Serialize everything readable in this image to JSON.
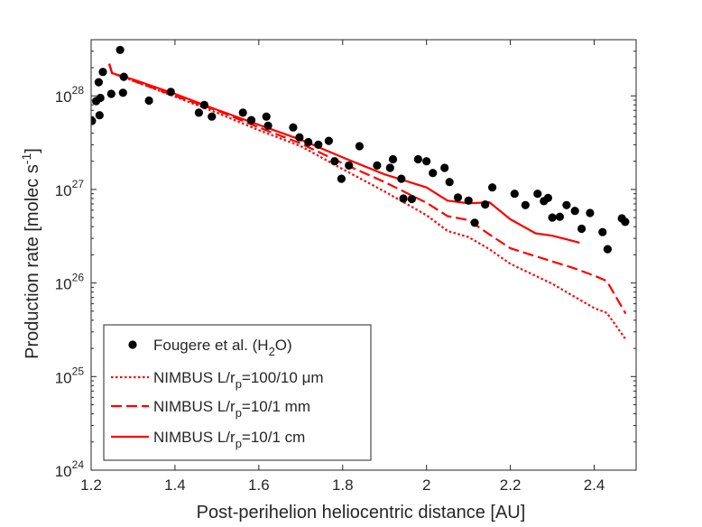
{
  "chart_data": {
    "type": "scatter",
    "title": "",
    "xlabel": "Post-perihelion heliocentric distance [AU]",
    "ylabel": {
      "prefix": "Production rate [molec s",
      "superscript": "-1",
      "suffix": "]"
    },
    "xlim": [
      1.2,
      2.5
    ],
    "ylim_log10": [
      24,
      28.6
    ],
    "yscale": "log",
    "x_ticks": [
      1.2,
      1.4,
      1.6,
      1.8,
      2.0,
      2.2,
      2.4
    ],
    "x_tick_labels": [
      "1.2",
      "1.4",
      "1.6",
      "1.8",
      "2",
      "2.2",
      "2.4"
    ],
    "y_ticks": [
      {
        "value": 24,
        "base": "10",
        "exp": "24"
      },
      {
        "value": 25,
        "base": "10",
        "exp": "25"
      },
      {
        "value": 26,
        "base": "10",
        "exp": "26"
      },
      {
        "value": 27,
        "base": "10",
        "exp": "27"
      },
      {
        "value": 28,
        "base": "10",
        "exp": "28"
      }
    ],
    "legend_position": "bottom-left",
    "colors": {
      "observations": "#000000",
      "model": "#ff0000",
      "axis": "#262626"
    },
    "series": [
      {
        "name": "Fougere et al. (H2O)",
        "label": {
          "prefix": "Fougere et al. (H",
          "sub": "2",
          "suffix": "O)"
        },
        "style": "markers",
        "points": [
          [
            1.202,
            5.4e+27
          ],
          [
            1.212,
            8.8e+27
          ],
          [
            1.218,
            1.4e+28
          ],
          [
            1.22,
            6.2e+27
          ],
          [
            1.222,
            9.5e+27
          ],
          [
            1.228,
            1.8e+28
          ],
          [
            1.248,
            1.05e+28
          ],
          [
            1.269,
            3.1e+28
          ],
          [
            1.276,
            1.08e+28
          ],
          [
            1.278,
            1.6e+28
          ],
          [
            1.338,
            8.9e+27
          ],
          [
            1.39,
            1.1e+28
          ],
          [
            1.457,
            6.6e+27
          ],
          [
            1.47,
            8e+27
          ],
          [
            1.488,
            6e+27
          ],
          [
            1.562,
            6.6e+27
          ],
          [
            1.582,
            5.5e+27
          ],
          [
            1.618,
            6e+27
          ],
          [
            1.622,
            4.8e+27
          ],
          [
            1.682,
            4.6e+27
          ],
          [
            1.697,
            3.6e+27
          ],
          [
            1.718,
            3.2e+27
          ],
          [
            1.742,
            3e+27
          ],
          [
            1.767,
            3.3e+27
          ],
          [
            1.781,
            2e+27
          ],
          [
            1.797,
            1.3e+27
          ],
          [
            1.815,
            1.8e+27
          ],
          [
            1.84,
            2.9e+27
          ],
          [
            1.882,
            1.8e+27
          ],
          [
            1.913,
            1.7e+27
          ],
          [
            1.92,
            2.1e+27
          ],
          [
            1.94,
            1.3e+27
          ],
          [
            1.945,
            8e+26
          ],
          [
            1.965,
            7.9e+26
          ],
          [
            1.98,
            2.1e+27
          ],
          [
            2.0,
            2e+27
          ],
          [
            2.015,
            1.5e+27
          ],
          [
            2.043,
            1.7e+27
          ],
          [
            2.055,
            1.2e+27
          ],
          [
            2.075,
            8.2e+26
          ],
          [
            2.1,
            7.6e+26
          ],
          [
            2.115,
            4.4e+26
          ],
          [
            2.14,
            6.9e+26
          ],
          [
            2.157,
            1.05e+27
          ],
          [
            2.21,
            9e+26
          ],
          [
            2.236,
            6.8e+26
          ],
          [
            2.265,
            9e+26
          ],
          [
            2.28,
            7.5e+26
          ],
          [
            2.29,
            8.1e+26
          ],
          [
            2.3,
            5e+26
          ],
          [
            2.318,
            5.1e+26
          ],
          [
            2.334,
            6.8e+26
          ],
          [
            2.354,
            5.9e+26
          ],
          [
            2.37,
            3.8e+26
          ],
          [
            2.39,
            5.6e+26
          ],
          [
            2.42,
            3.5e+26
          ],
          [
            2.432,
            2.3e+26
          ],
          [
            2.466,
            4.9e+26
          ],
          [
            2.474,
            4.5e+26
          ]
        ]
      },
      {
        "name": "NIMBUS L/rp=100/10 μm",
        "label": {
          "prefix": "NIMBUS L/r",
          "sub": "p",
          "suffix": "=100/10 μm"
        },
        "style": "dotted",
        "points": [
          [
            1.243,
            2.2e+28
          ],
          [
            1.25,
            1.75e+28
          ],
          [
            1.3,
            1.45e+28
          ],
          [
            1.4,
            9.8e+27
          ],
          [
            1.5,
            6.6e+27
          ],
          [
            1.6,
            4.3e+27
          ],
          [
            1.7,
            2.9e+27
          ],
          [
            1.8,
            1.65e+27
          ],
          [
            1.9,
            9.5e+26
          ],
          [
            2.0,
            5.3e+26
          ],
          [
            2.05,
            3.6e+26
          ],
          [
            2.1,
            3.1e+26
          ],
          [
            2.15,
            2.3e+26
          ],
          [
            2.2,
            1.6e+26
          ],
          [
            2.3,
            9.8e+25
          ],
          [
            2.4,
            5.4e+25
          ],
          [
            2.43,
            4.8e+25
          ],
          [
            2.475,
            2.5e+25
          ]
        ]
      },
      {
        "name": "NIMBUS L/rp=10/1 mm",
        "label": {
          "prefix": "NIMBUS L/r",
          "sub": "p",
          "suffix": "=10/1 mm"
        },
        "style": "dashed",
        "points": [
          [
            1.243,
            2.2e+28
          ],
          [
            1.25,
            1.75e+28
          ],
          [
            1.3,
            1.45e+28
          ],
          [
            1.4,
            1e+28
          ],
          [
            1.5,
            7e+27
          ],
          [
            1.6,
            4.6e+27
          ],
          [
            1.7,
            3.1e+27
          ],
          [
            1.8,
            1.9e+27
          ],
          [
            1.9,
            1.2e+27
          ],
          [
            2.0,
            7.2e+26
          ],
          [
            2.05,
            5.2e+26
          ],
          [
            2.1,
            4.7e+26
          ],
          [
            2.15,
            3.3e+26
          ],
          [
            2.2,
            2.35e+26
          ],
          [
            2.25,
            2e+26
          ],
          [
            2.3,
            1.7e+26
          ],
          [
            2.35,
            1.45e+26
          ],
          [
            2.4,
            1.2e+26
          ],
          [
            2.43,
            1.05e+26
          ],
          [
            2.475,
            4.7e+25
          ]
        ]
      },
      {
        "name": "NIMBUS L/rp=10/1 cm",
        "label": {
          "prefix": "NIMBUS L/r",
          "sub": "p",
          "suffix": "=10/1 cm"
        },
        "style": "solid",
        "points": [
          [
            1.243,
            2.2e+28
          ],
          [
            1.25,
            1.75e+28
          ],
          [
            1.3,
            1.5e+28
          ],
          [
            1.4,
            1.05e+28
          ],
          [
            1.5,
            7.1e+27
          ],
          [
            1.6,
            4.9e+27
          ],
          [
            1.7,
            3.4e+27
          ],
          [
            1.8,
            2.2e+27
          ],
          [
            1.9,
            1.45e+27
          ],
          [
            2.0,
            1.05e+27
          ],
          [
            2.05,
            7.6e+26
          ],
          [
            2.1,
            7.1e+26
          ],
          [
            2.15,
            7.3e+26
          ],
          [
            2.2,
            4.8e+26
          ],
          [
            2.26,
            3.4e+26
          ],
          [
            2.3,
            3.2e+26
          ],
          [
            2.365,
            2.7e+26
          ]
        ]
      }
    ]
  }
}
